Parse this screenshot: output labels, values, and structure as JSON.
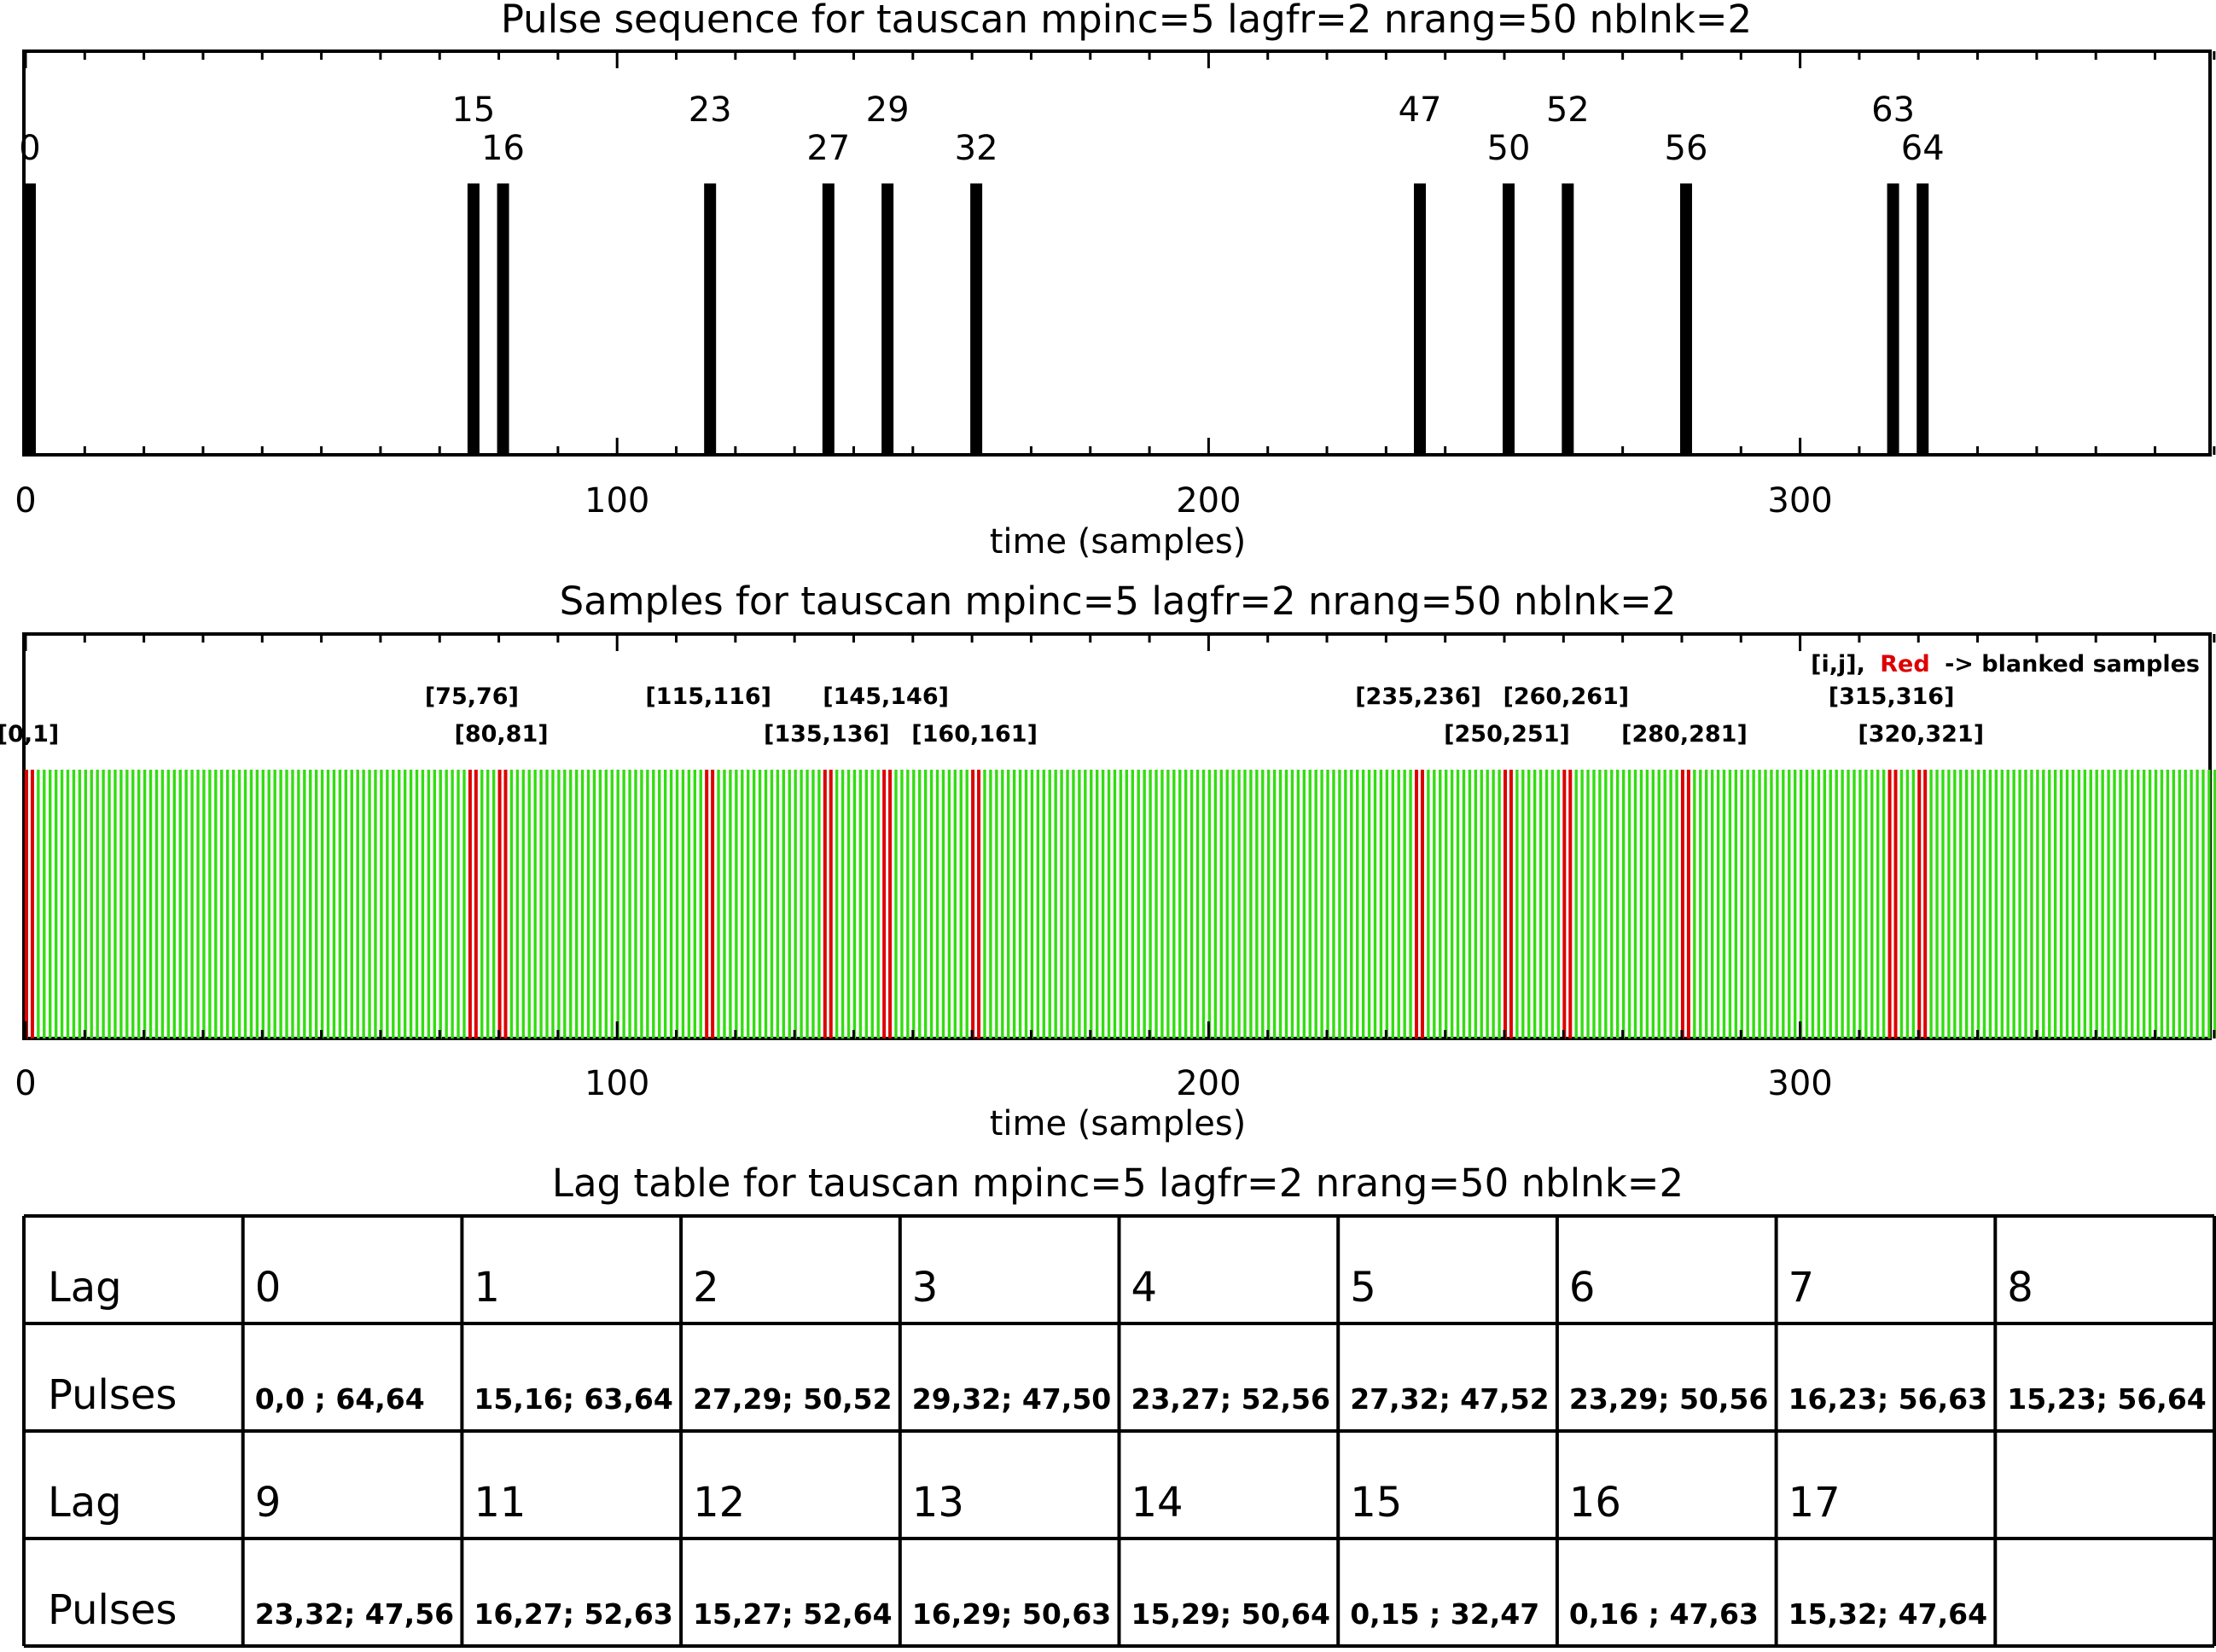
{
  "chart_data": [
    {
      "type": "bar",
      "title": "Pulse sequence for tauscan mpinc=5 lagfr=2 nrang=50 nblnk=2",
      "xlabel": "time (samples)",
      "ylabel": "",
      "xlim": [
        0,
        370
      ],
      "xticks": [
        0,
        100,
        200,
        300
      ],
      "pulses": [
        {
          "label": "0",
          "time": 0
        },
        {
          "label": "15",
          "time": 75
        },
        {
          "label": "16",
          "time": 80
        },
        {
          "label": "23",
          "time": 115
        },
        {
          "label": "27",
          "time": 135
        },
        {
          "label": "29",
          "time": 145
        },
        {
          "label": "32",
          "time": 160
        },
        {
          "label": "47",
          "time": 235
        },
        {
          "label": "50",
          "time": 250
        },
        {
          "label": "52",
          "time": 260
        },
        {
          "label": "56",
          "time": 280
        },
        {
          "label": "63",
          "time": 315
        },
        {
          "label": "64",
          "time": 320
        }
      ]
    },
    {
      "type": "bar",
      "title": "Samples for tauscan mpinc=5 lagfr=2 nrang=50 nblnk=2",
      "xlabel": "time (samples)",
      "xlim": [
        0,
        370
      ],
      "xticks": [
        0,
        100,
        200,
        300
      ],
      "sample_range": [
        0,
        370
      ],
      "sample_color": "#33dd11",
      "blank_color": "#dd0000",
      "legend": {
        "prefix": "[i,j],",
        "red_word": "Red",
        "suffix": "-> blanked samples"
      },
      "blanked": [
        {
          "label": "[0,1]",
          "i": 0,
          "j": 1
        },
        {
          "label": "[75,76]",
          "i": 75,
          "j": 76
        },
        {
          "label": "[80,81]",
          "i": 80,
          "j": 81
        },
        {
          "label": "[115,116]",
          "i": 115,
          "j": 116
        },
        {
          "label": "[135,136]",
          "i": 135,
          "j": 136
        },
        {
          "label": "[145,146]",
          "i": 145,
          "j": 146
        },
        {
          "label": "[160,161]",
          "i": 160,
          "j": 161
        },
        {
          "label": "[235,236]",
          "i": 235,
          "j": 236
        },
        {
          "label": "[250,251]",
          "i": 250,
          "j": 251
        },
        {
          "label": "[260,261]",
          "i": 260,
          "j": 261
        },
        {
          "label": "[280,281]",
          "i": 280,
          "j": 281
        },
        {
          "label": "[315,316]",
          "i": 315,
          "j": 316
        },
        {
          "label": "[320,321]",
          "i": 320,
          "j": 321
        }
      ]
    },
    {
      "type": "table",
      "title": "Lag table for tauscan mpinc=5 lagfr=2 nrang=50 nblnk=2",
      "rows": [
        [
          "Lag",
          "0",
          "1",
          "2",
          "3",
          "4",
          "5",
          "6",
          "7",
          "8"
        ],
        [
          "Pulses",
          "0,0    ; 64,64",
          "15,16; 63,64",
          "27,29; 50,52",
          "29,32; 47,50",
          "23,27; 52,56",
          "27,32; 47,52",
          "23,29; 50,56",
          "16,23; 56,63",
          "15,23; 56,64"
        ],
        [
          "Lag",
          "9",
          "11",
          "12",
          "13",
          "14",
          "15",
          "16",
          "17",
          ""
        ],
        [
          "Pulses",
          "23,32; 47,56",
          "16,27; 52,63",
          "15,27; 52,64",
          "16,29; 50,63",
          "15,29; 50,64",
          "0,15   ; 32,47",
          "0,16   ; 47,63",
          "15,32; 47,64",
          ""
        ]
      ]
    }
  ]
}
